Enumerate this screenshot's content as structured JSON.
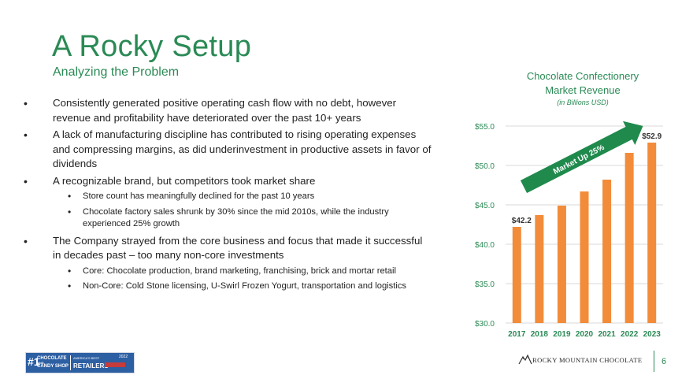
{
  "slide": {
    "title": "A Rocky Setup",
    "subtitle": "Analyzing the Problem",
    "page_number": "6"
  },
  "bullets": [
    {
      "level": 1,
      "text": "Consistently generated positive operating cash flow with no debt, however revenue and profitability have deteriorated over the past 10+ years"
    },
    {
      "level": 1,
      "text": "A lack of manufacturing discipline has contributed to rising operating expenses and compressing margins, as did underinvestment in productive assets in favor of dividends"
    },
    {
      "level": 1,
      "text": "A recognizable brand, but competitors took market share"
    },
    {
      "level": 2,
      "text": "Store count has meaningfully declined for the past 10 years"
    },
    {
      "level": 2,
      "text": "Chocolate factory sales shrunk by 30% since the mid 2010s, while the industry experienced 25% growth"
    },
    {
      "level": 1,
      "text": "The Company strayed from the core business and focus that made it successful in decades past – too many non-core investments"
    },
    {
      "level": 2,
      "text": "Core: Chocolate production, brand marketing, franchising, brick and mortar retail"
    },
    {
      "level": 2,
      "text": "Non-Core: Cold Stone licensing, U-Swirl Frozen Yogurt, transportation and logistics"
    }
  ],
  "chart_data": {
    "type": "bar",
    "title": "Chocolate Confectionery Market Revenue",
    "title_line1": "Chocolate Confectionery",
    "title_line2": "Market Revenue",
    "subtitle": "(in Billions USD)",
    "categories": [
      "2017",
      "2018",
      "2019",
      "2020",
      "2021",
      "2022",
      "2023"
    ],
    "values": [
      42.2,
      43.7,
      44.9,
      46.7,
      48.2,
      51.6,
      52.9
    ],
    "ylim": [
      30.0,
      55.0
    ],
    "y_ticks": [
      "$30.0",
      "$35.0",
      "$40.0",
      "$45.0",
      "$50.0",
      "$55.0"
    ],
    "y_tick_values": [
      30,
      35,
      40,
      45,
      50,
      55
    ],
    "data_labels": {
      "first": "$42.2",
      "last": "$52.9"
    },
    "annotation": "Market Up 25%",
    "bar_color": "#f28c3a",
    "arrow_color": "#1f8a4c"
  },
  "footer": {
    "award_rank": "#1",
    "award_line1": "CHOCOLATE",
    "award_line1b": "AND",
    "award_line2": "CANDY SHOP",
    "award_line3": "AMERICA'S BEST",
    "award_line4": "RETAILERS",
    "award_year": "2022",
    "brand_name": "ROCKY MOUNTAIN CHOCOLATE"
  },
  "colors": {
    "accent": "#2a8a55",
    "award_bg": "#2d5fa3"
  }
}
